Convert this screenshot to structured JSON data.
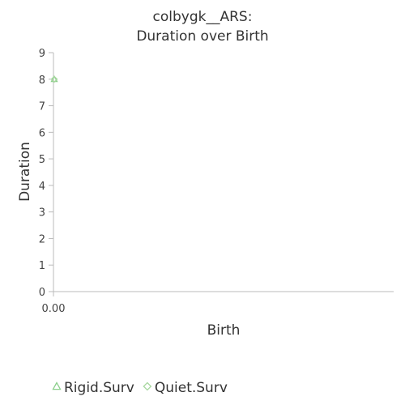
{
  "chart_data": {
    "type": "scatter",
    "title": [
      "colbygk__ARS:",
      "Duration over Birth"
    ],
    "xlabel": "Birth",
    "ylabel": "Duration",
    "xlim": [
      0,
      1
    ],
    "ylim": [
      0,
      9
    ],
    "x_ticks": [
      "0.00"
    ],
    "y_ticks": [
      0,
      1,
      2,
      3,
      4,
      5,
      6,
      7,
      8,
      9
    ],
    "grid": false,
    "legend_position": "bottom",
    "series": [
      {
        "name": "Rigid.Surv",
        "marker": "triangle",
        "color": "#8ccf8c",
        "points": [
          {
            "x": 0,
            "y": 8
          }
        ]
      },
      {
        "name": "Quiet.Surv",
        "marker": "diamond",
        "color": "#a8d8a0",
        "points": [
          {
            "x": 0,
            "y": 8
          }
        ]
      }
    ]
  }
}
